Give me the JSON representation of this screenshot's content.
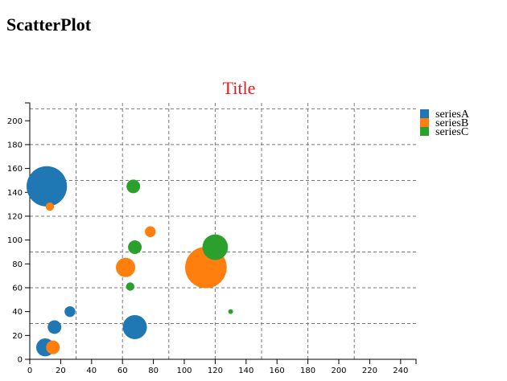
{
  "page": {
    "heading": "ScatterPlot"
  },
  "chart_data": {
    "type": "scatter",
    "title": "Title",
    "title_color": "#e31a1c",
    "xlabel": "",
    "ylabel": "",
    "xlim": [
      0,
      250
    ],
    "ylim": [
      0,
      215
    ],
    "x_ticks": [
      0,
      20,
      40,
      60,
      80,
      100,
      120,
      140,
      160,
      180,
      200,
      220,
      240
    ],
    "y_ticks": [
      0,
      20,
      40,
      60,
      80,
      100,
      120,
      140,
      160,
      180,
      200
    ],
    "x_grid": [
      30,
      60,
      90,
      120,
      150,
      180,
      210
    ],
    "y_grid": [
      30,
      60,
      90,
      120,
      150,
      180,
      210
    ],
    "grid": true,
    "grid_style": "dashed",
    "legend_position": "top-right",
    "series": [
      {
        "name": "seriesA",
        "color": "#1f77b4",
        "points": [
          {
            "x": 11,
            "y": 145,
            "size": 70
          },
          {
            "x": 10,
            "y": 10,
            "size": 14
          },
          {
            "x": 16,
            "y": 27,
            "size": 8
          },
          {
            "x": 26,
            "y": 40,
            "size": 5
          },
          {
            "x": 68,
            "y": 27,
            "size": 25
          }
        ]
      },
      {
        "name": "seriesB",
        "color": "#ff7f0e",
        "points": [
          {
            "x": 114,
            "y": 77,
            "size": 74
          },
          {
            "x": 62,
            "y": 77,
            "size": 16
          },
          {
            "x": 78,
            "y": 107,
            "size": 5
          },
          {
            "x": 15,
            "y": 10,
            "size": 8
          },
          {
            "x": 13,
            "y": 128,
            "size": 3
          }
        ]
      },
      {
        "name": "seriesC",
        "color": "#2ca02c",
        "points": [
          {
            "x": 120,
            "y": 94,
            "size": 28
          },
          {
            "x": 67,
            "y": 145,
            "size": 8
          },
          {
            "x": 68,
            "y": 94,
            "size": 8
          },
          {
            "x": 65,
            "y": 61,
            "size": 3
          },
          {
            "x": 130,
            "y": 40,
            "size": 1
          }
        ]
      }
    ]
  }
}
